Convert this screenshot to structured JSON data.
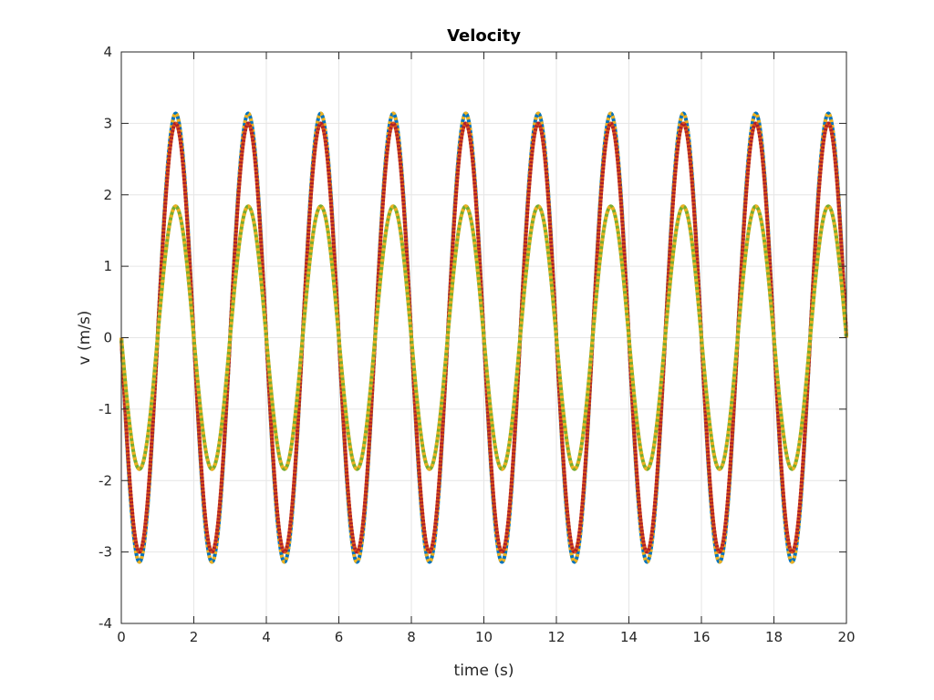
{
  "chart_data": {
    "type": "line",
    "title": "Velocity",
    "xlabel": "time (s)",
    "ylabel": "v (m/s)",
    "xlim": [
      0,
      20
    ],
    "ylim": [
      -4,
      4
    ],
    "xticks": [
      0,
      2,
      4,
      6,
      8,
      10,
      12,
      14,
      16,
      18,
      20
    ],
    "yticks": [
      -4,
      -3,
      -2,
      -1,
      0,
      1,
      2,
      3,
      4
    ],
    "xtick_labels": [
      "0",
      "2",
      "4",
      "6",
      "8",
      "10",
      "12",
      "14",
      "16",
      "18",
      "20"
    ],
    "ytick_labels": [
      "-4",
      "-3",
      "-2",
      "-1",
      "0",
      "1",
      "2",
      "3",
      "4"
    ],
    "grid": true,
    "legend": "none",
    "period": 2,
    "series": [
      {
        "amplitude": 3.14,
        "color": "#0072BD",
        "alt_color": "#EDB120",
        "style": "dotted",
        "x": [
          0,
          0.5,
          1,
          1.5,
          2,
          2.5,
          3,
          3.5,
          4,
          4.5,
          5,
          5.5,
          6,
          6.5,
          7,
          7.5,
          8,
          8.5,
          9,
          9.5,
          10,
          10.5,
          11,
          11.5,
          12,
          12.5,
          13,
          13.5,
          14,
          14.5,
          15,
          15.5,
          16,
          16.5,
          17,
          17.5,
          18,
          18.5,
          19,
          19.5,
          20
        ],
        "y": [
          0,
          -3.14,
          0,
          3.14,
          0,
          -3.14,
          0,
          3.14,
          0,
          -3.14,
          0,
          3.14,
          0,
          -3.14,
          0,
          3.14,
          0,
          -3.14,
          0,
          3.14,
          0,
          -3.14,
          0,
          3.14,
          0,
          -3.14,
          0,
          3.14,
          0,
          -3.14,
          0,
          3.14,
          0,
          -3.14,
          0,
          3.14,
          0,
          -3.14,
          0,
          3.14,
          0
        ]
      },
      {
        "amplitude": 3.0,
        "color": "#D95319",
        "alt_color": "#A2142F",
        "style": "solid",
        "x": [
          0,
          0.5,
          1,
          1.5,
          2,
          2.5,
          3,
          3.5,
          4,
          4.5,
          5,
          5.5,
          6,
          6.5,
          7,
          7.5,
          8,
          8.5,
          9,
          9.5,
          10,
          10.5,
          11,
          11.5,
          12,
          12.5,
          13,
          13.5,
          14,
          14.5,
          15,
          15.5,
          16,
          16.5,
          17,
          17.5,
          18,
          18.5,
          19,
          19.5,
          20
        ],
        "y": [
          0,
          -3.0,
          0,
          3.0,
          0,
          -3.0,
          0,
          3.0,
          0,
          -3.0,
          0,
          3.0,
          0,
          -3.0,
          0,
          3.0,
          0,
          -3.0,
          0,
          3.0,
          0,
          -3.0,
          0,
          3.0,
          0,
          -3.0,
          0,
          3.0,
          0,
          -3.0,
          0,
          3.0,
          0,
          -3.0,
          0,
          3.0,
          0,
          -3.0,
          0,
          3.0,
          0
        ]
      },
      {
        "amplitude": 1.84,
        "color": "#77AC30",
        "alt_color": "#EDB120",
        "style": "dotted",
        "x": [
          0,
          0.5,
          1,
          1.5,
          2,
          2.5,
          3,
          3.5,
          4,
          4.5,
          5,
          5.5,
          6,
          6.5,
          7,
          7.5,
          8,
          8.5,
          9,
          9.5,
          10,
          10.5,
          11,
          11.5,
          12,
          12.5,
          13,
          13.5,
          14,
          14.5,
          15,
          15.5,
          16,
          16.5,
          17,
          17.5,
          18,
          18.5,
          19,
          19.5,
          20
        ],
        "y": [
          0,
          -1.84,
          0,
          1.84,
          0,
          -1.84,
          0,
          1.84,
          0,
          -1.84,
          0,
          1.84,
          0,
          -1.84,
          0,
          1.84,
          0,
          -1.84,
          0,
          1.84,
          0,
          -1.84,
          0,
          1.84,
          0,
          -1.84,
          0,
          1.84,
          0,
          -1.84,
          0,
          1.84,
          0,
          -1.84,
          0,
          1.84,
          0,
          -1.84,
          0,
          1.84,
          0
        ]
      }
    ]
  }
}
